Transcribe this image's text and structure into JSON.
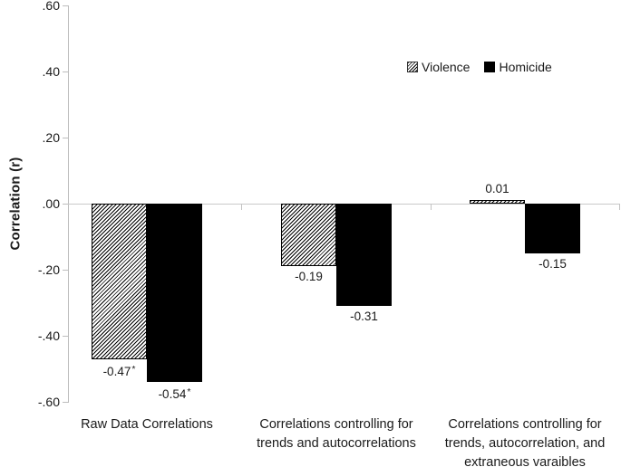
{
  "chart_data": {
    "type": "bar",
    "title": "",
    "xlabel": "",
    "ylabel": "Correlation (r)",
    "ylim": [
      -0.6,
      0.6
    ],
    "grid": "zero-line-only",
    "legend_position": "top-right-inside",
    "yticks": [
      {
        "value": 0.6,
        "label": ".60"
      },
      {
        "value": 0.4,
        "label": ".40"
      },
      {
        "value": 0.2,
        "label": ".20"
      },
      {
        "value": 0.0,
        "label": ".00"
      },
      {
        "value": -0.2,
        "label": "-.20"
      },
      {
        "value": -0.4,
        "label": "-.40"
      },
      {
        "value": -0.6,
        "label": "-.60"
      }
    ],
    "categories": [
      "Raw Data Correlations",
      "Correlations controlling for trends and autocorrelations",
      "Correlations controlling for trends, autocorrelation, and extraneous varaibles"
    ],
    "category_lines": [
      [
        "Raw Data Correlations"
      ],
      [
        "Correlations controlling for",
        "trends and autocorrelations"
      ],
      [
        "Correlations controlling for",
        "trends, autocorrelation, and",
        "extraneous varaibles"
      ]
    ],
    "series": [
      {
        "name": "Violence",
        "style": "diagonal-hatch",
        "values": [
          -0.47,
          -0.19,
          0.01
        ],
        "value_labels": [
          "-0.47",
          "-0.19",
          "0.01"
        ],
        "significance_flags": [
          "*",
          "",
          ""
        ]
      },
      {
        "name": "Homicide",
        "style": "solid-black",
        "values": [
          -0.54,
          -0.31,
          -0.15
        ],
        "value_labels": [
          "-0.54",
          "-0.31",
          "-0.15"
        ],
        "significance_flags": [
          "*",
          "",
          ""
        ]
      }
    ],
    "colors": {
      "solid_fill": "#000000",
      "hatch_stroke": "#000000",
      "axis_line": "#bdbdbd",
      "zero_line": "#c9c9c9",
      "text": "#1a1a1a",
      "background": "#ffffff"
    }
  }
}
